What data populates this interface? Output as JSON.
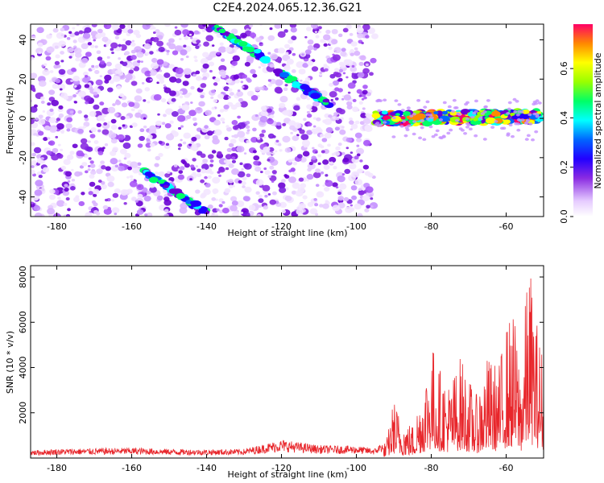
{
  "title": "C2E4.2024.065.12.36.G21",
  "chart_data": [
    {
      "type": "heatmap",
      "xlabel": "Height of straight line (km)",
      "ylabel": "Frequency (Hz)",
      "xlim": [
        -187,
        -50
      ],
      "ylim": [
        -50,
        48
      ],
      "x_ticks": [
        -180,
        -160,
        -140,
        -120,
        -100,
        -80,
        -60
      ],
      "y_ticks": [
        -40,
        -20,
        0,
        20,
        40
      ],
      "colorbar": {
        "label": "Normalized spectral amplitude",
        "range": [
          0,
          0.78
        ],
        "ticks": [
          0.0,
          0.2,
          0.4,
          0.6
        ]
      },
      "features": [
        {
          "name": "",
          "x": [
            -138,
            -124
          ],
          "y": [
            47,
            30
          ]
        },
        {
          "name": "",
          "x": [
            -121,
            -107
          ],
          "y": [
            24,
            7
          ]
        },
        {
          "name": "",
          "x": [
            -157,
            -140
          ],
          "y": [
            -27,
            -48
          ]
        },
        {
          "name": "",
          "x": [
            -95,
            -51
          ],
          "y": [
            0,
            1
          ]
        }
      ],
      "noise_region_x": [
        -187,
        -95
      ]
    },
    {
      "type": "line",
      "xlabel": "Height of straight line (km)",
      "ylabel": "SNR (10 * v/v)",
      "xlim": [
        -187,
        -50
      ],
      "ylim": [
        0,
        8500
      ],
      "x_ticks": [
        -180,
        -160,
        -140,
        -120,
        -100,
        -80,
        -60
      ],
      "y_ticks": [
        2000,
        4000,
        6000,
        8000
      ],
      "grid": false,
      "series": [
        {
          "name": "",
          "x": [
            -187,
            -180,
            -170,
            -160,
            -150,
            -140,
            -130,
            -120,
            -110,
            -100,
            -95,
            -92,
            -90,
            -88,
            -85,
            -82,
            -80,
            -78,
            -75,
            -72,
            -70,
            -68,
            -65,
            -62,
            -60,
            -58,
            -56,
            -54,
            -52,
            -50
          ],
          "y": [
            250,
            300,
            320,
            340,
            300,
            280,
            300,
            600,
            420,
            400,
            320,
            700,
            2500,
            1600,
            1400,
            3200,
            4900,
            3800,
            3100,
            4300,
            3300,
            2600,
            4200,
            3800,
            5600,
            6000,
            3800,
            8400,
            5900,
            4200
          ]
        }
      ]
    }
  ]
}
